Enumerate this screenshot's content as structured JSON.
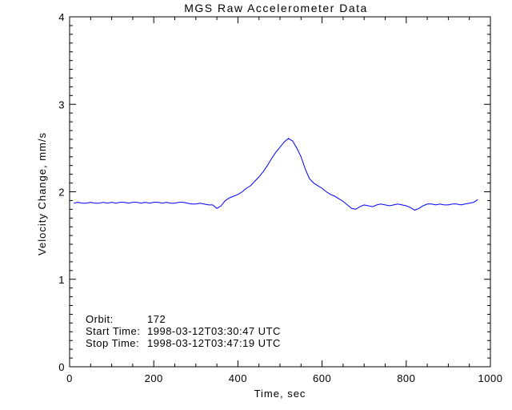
{
  "chart_data": {
    "type": "line",
    "title": "MGS Raw Accelerometer Data",
    "xlabel": "Time, sec",
    "ylabel": "Velocity Change, mm/s",
    "xlim": [
      0,
      1000
    ],
    "ylim": [
      0,
      4
    ],
    "x_major_ticks": [
      0,
      200,
      400,
      600,
      800,
      1000
    ],
    "y_major_ticks": [
      0,
      1,
      2,
      3,
      4
    ],
    "x_minor_step": 50,
    "y_minor_step": 0.1,
    "grid": false,
    "legend": "none",
    "frame_style": "box-with-inward-ticks",
    "line_color": "#0000ff",
    "axis_color": "#000000",
    "background_color": "#ffffff",
    "series": [
      {
        "name": "velocity-change",
        "x": [
          10,
          20,
          30,
          40,
          50,
          60,
          70,
          80,
          90,
          100,
          110,
          120,
          130,
          140,
          150,
          160,
          170,
          180,
          190,
          200,
          210,
          220,
          230,
          240,
          250,
          260,
          270,
          280,
          290,
          300,
          310,
          320,
          330,
          340,
          350,
          360,
          370,
          380,
          390,
          400,
          410,
          420,
          430,
          440,
          450,
          460,
          470,
          480,
          490,
          500,
          510,
          520,
          530,
          540,
          550,
          560,
          570,
          580,
          590,
          600,
          610,
          620,
          630,
          640,
          650,
          660,
          670,
          680,
          690,
          700,
          710,
          720,
          730,
          740,
          750,
          760,
          770,
          780,
          790,
          800,
          810,
          820,
          830,
          840,
          850,
          860,
          870,
          880,
          890,
          900,
          910,
          920,
          930,
          940,
          950,
          960,
          970
        ],
        "y": [
          1.87,
          1.88,
          1.87,
          1.87,
          1.88,
          1.87,
          1.87,
          1.88,
          1.87,
          1.88,
          1.87,
          1.88,
          1.88,
          1.87,
          1.88,
          1.88,
          1.87,
          1.88,
          1.87,
          1.88,
          1.88,
          1.87,
          1.88,
          1.87,
          1.87,
          1.88,
          1.88,
          1.87,
          1.86,
          1.86,
          1.87,
          1.86,
          1.85,
          1.85,
          1.81,
          1.84,
          1.9,
          1.93,
          1.95,
          1.97,
          2.0,
          2.04,
          2.07,
          2.12,
          2.17,
          2.23,
          2.3,
          2.38,
          2.45,
          2.51,
          2.57,
          2.61,
          2.58,
          2.5,
          2.4,
          2.26,
          2.15,
          2.1,
          2.07,
          2.04,
          2.0,
          1.97,
          1.95,
          1.92,
          1.89,
          1.85,
          1.81,
          1.8,
          1.83,
          1.85,
          1.84,
          1.83,
          1.85,
          1.86,
          1.85,
          1.84,
          1.85,
          1.86,
          1.85,
          1.84,
          1.82,
          1.79,
          1.81,
          1.84,
          1.86,
          1.86,
          1.85,
          1.86,
          1.85,
          1.85,
          1.86,
          1.86,
          1.85,
          1.86,
          1.87,
          1.88,
          1.91
        ]
      }
    ],
    "annotations": {
      "orbit": {
        "label": "Orbit:",
        "value": "172"
      },
      "start_time": {
        "label": "Start Time:",
        "value": "1998-03-12T03:30:47 UTC"
      },
      "stop_time": {
        "label": "Stop Time:",
        "value": "1998-03-12T03:47:19 UTC"
      }
    }
  }
}
